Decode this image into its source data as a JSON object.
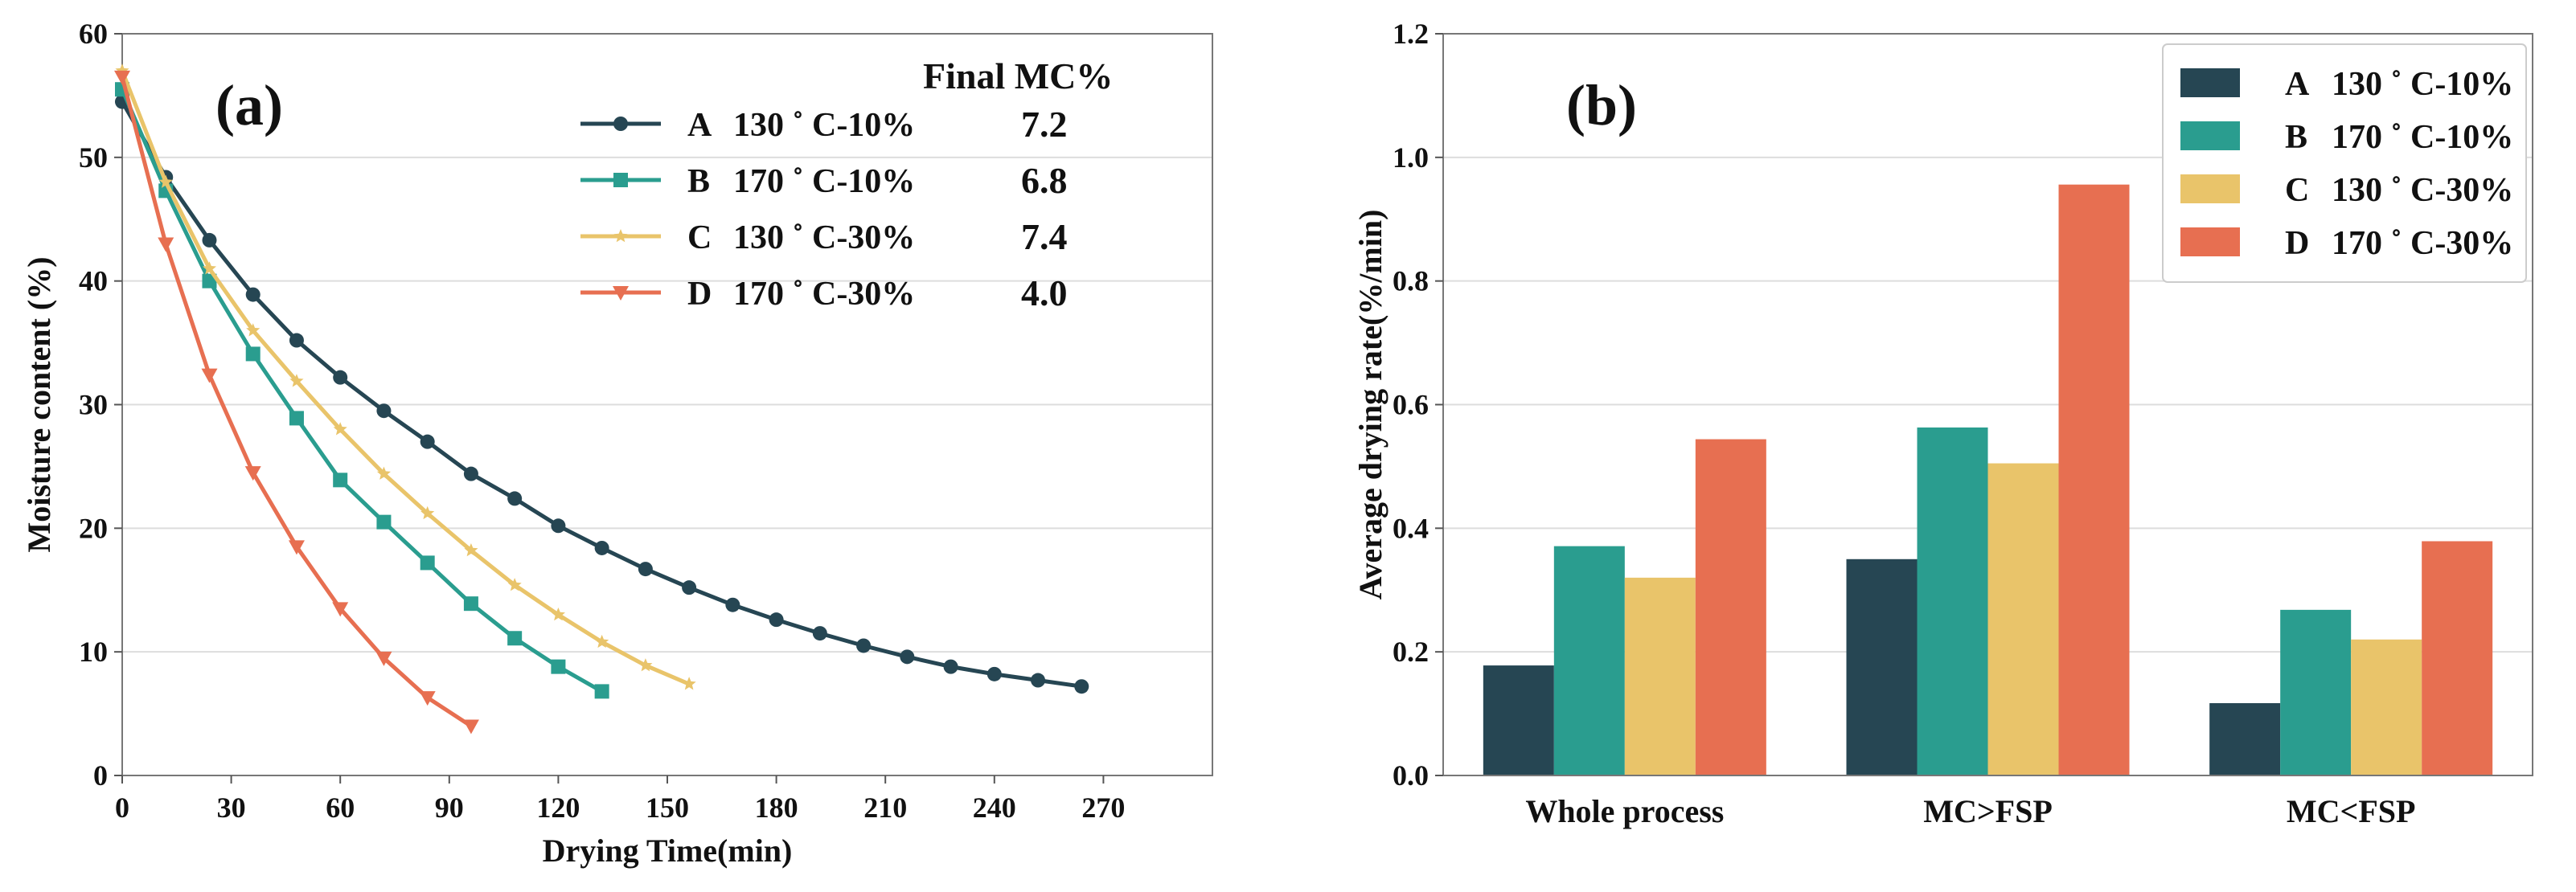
{
  "chart_data": [
    {
      "type": "line",
      "panel_label": "(a)",
      "xlabel": "Drying Time(min)",
      "ylabel": "Moisture content (%)",
      "xlim": [
        0,
        300
      ],
      "ylim": [
        0,
        60
      ],
      "xticks": [
        0,
        30,
        60,
        90,
        120,
        150,
        180,
        210,
        240,
        270
      ],
      "xtick_labels": [
        "0",
        "30",
        "60",
        "90",
        "120",
        "150",
        "180",
        "210",
        "240",
        "270"
      ],
      "yticks": [
        0,
        10,
        20,
        30,
        40,
        50,
        60
      ],
      "ytick_labels": [
        "0",
        "10",
        "20",
        "30",
        "40",
        "50",
        "60"
      ],
      "grid": "horizontal",
      "legend_header": "Final MC%",
      "series": [
        {
          "id": "A",
          "letter": "A",
          "label": "130 ˚ C-10%",
          "final_mc": "7.2",
          "color": "#264653",
          "marker": "circle",
          "x": [
            0,
            12,
            24,
            36,
            48,
            60,
            72,
            84,
            96,
            108,
            120,
            132,
            144,
            156,
            168,
            180,
            192,
            204,
            216,
            228,
            240,
            252,
            264
          ],
          "y": [
            54.5,
            48.4,
            43.3,
            38.9,
            35.2,
            32.2,
            29.5,
            27.0,
            24.4,
            22.4,
            20.2,
            18.4,
            16.7,
            15.2,
            13.8,
            12.6,
            11.5,
            10.5,
            9.6,
            8.8,
            8.2,
            7.7,
            7.2
          ]
        },
        {
          "id": "B",
          "letter": "B",
          "label": "170 ˚ C-10%",
          "final_mc": "6.8",
          "color": "#2a9d8f",
          "marker": "square",
          "x": [
            0,
            12,
            24,
            36,
            48,
            60,
            72,
            84,
            96,
            108,
            120,
            132
          ],
          "y": [
            55.5,
            47.3,
            40.0,
            34.1,
            28.9,
            23.9,
            20.5,
            17.2,
            13.9,
            11.1,
            8.8,
            6.8
          ]
        },
        {
          "id": "C",
          "letter": "C",
          "label": "130 ˚ C-30%",
          "final_mc": "7.4",
          "color": "#e9c46a",
          "marker": "star",
          "x": [
            0,
            12,
            24,
            36,
            48,
            60,
            72,
            84,
            96,
            108,
            120,
            132,
            144,
            156
          ],
          "y": [
            57.0,
            48.0,
            41.0,
            36.0,
            31.9,
            28.0,
            24.4,
            21.2,
            18.2,
            15.4,
            13.0,
            10.8,
            8.9,
            7.4
          ]
        },
        {
          "id": "D",
          "letter": "D",
          "label": "170 ˚ C-30%",
          "final_mc": "4.0",
          "color": "#e76f51",
          "marker": "triangle-down",
          "x": [
            0,
            12,
            24,
            36,
            48,
            60,
            72,
            84,
            96
          ],
          "y": [
            56.5,
            43.0,
            32.4,
            24.5,
            18.5,
            13.5,
            9.5,
            6.3,
            4.0
          ]
        }
      ]
    },
    {
      "type": "bar",
      "panel_label": "(b)",
      "xlabel": "",
      "ylabel": "Average drying rate(%/min)",
      "ylim": [
        0,
        1.2
      ],
      "yticks": [
        0,
        0.2,
        0.4,
        0.6,
        0.8,
        1.0,
        1.2
      ],
      "ytick_labels": [
        "0.0",
        "0.2",
        "0.4",
        "0.6",
        "0.8",
        "1.0",
        "1.2"
      ],
      "grid": "horizontal",
      "legend_position": "top-right",
      "categories": [
        "Whole process",
        "MC>FSP",
        "MC<FSP"
      ],
      "series": [
        {
          "id": "A",
          "letter": "A",
          "label": "130 ˚ C-10%",
          "color": "#264653",
          "values": [
            0.178,
            0.35,
            0.117
          ]
        },
        {
          "id": "B",
          "letter": "B",
          "label": "170 ˚ C-10%",
          "color": "#2a9d8f",
          "values": [
            0.371,
            0.563,
            0.268
          ]
        },
        {
          "id": "C",
          "letter": "C",
          "label": "130 ˚ C-30%",
          "color": "#e9c46a",
          "values": [
            0.32,
            0.505,
            0.22
          ]
        },
        {
          "id": "D",
          "letter": "D",
          "label": "170 ˚ C-30%",
          "color": "#e76f51",
          "values": [
            0.544,
            0.956,
            0.379
          ]
        }
      ]
    }
  ]
}
